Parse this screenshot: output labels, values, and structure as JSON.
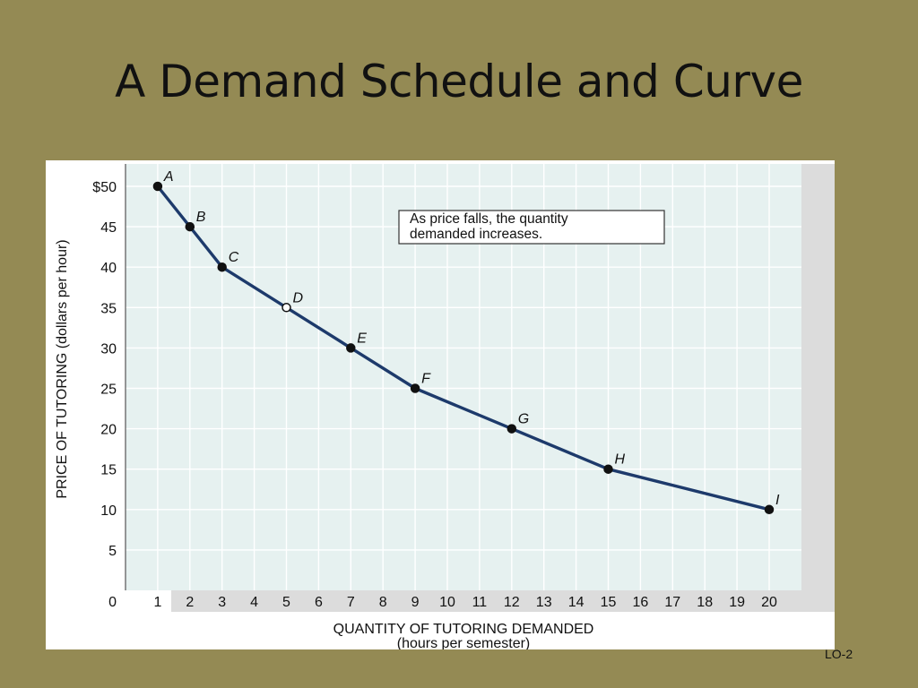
{
  "slide": {
    "title": "A Demand Schedule and Curve",
    "footer": "LO-2"
  },
  "chart_data": {
    "type": "line",
    "title": "",
    "xlabel": "QUANTITY OF TUTORING DEMANDED",
    "xlabel_sub": "(hours per semester)",
    "ylabel": "PRICE OF TUTORING (dollars per hour)",
    "xlim": [
      0,
      21
    ],
    "ylim": [
      0,
      52
    ],
    "x_ticks": [
      1,
      2,
      3,
      4,
      5,
      6,
      7,
      8,
      9,
      10,
      11,
      12,
      13,
      14,
      15,
      16,
      17,
      18,
      19,
      20
    ],
    "y_ticks": [
      0,
      5,
      10,
      15,
      20,
      25,
      30,
      35,
      40,
      45,
      50
    ],
    "y_tick_labels": [
      "0",
      "5",
      "10",
      "15",
      "20",
      "25",
      "30",
      "35",
      "40",
      "45",
      "$50"
    ],
    "grid": true,
    "annotation": {
      "line1": "As price falls, the quantity",
      "line2": "demanded increases."
    },
    "series": [
      {
        "points": [
          {
            "label": "A",
            "x": 1,
            "y": 50,
            "marker": "filled"
          },
          {
            "label": "B",
            "x": 2,
            "y": 45,
            "marker": "filled"
          },
          {
            "label": "C",
            "x": 3,
            "y": 40,
            "marker": "filled"
          },
          {
            "label": "D",
            "x": 5,
            "y": 35,
            "marker": "open"
          },
          {
            "label": "E",
            "x": 7,
            "y": 30,
            "marker": "filled"
          },
          {
            "label": "F",
            "x": 9,
            "y": 25,
            "marker": "filled"
          },
          {
            "label": "G",
            "x": 12,
            "y": 20,
            "marker": "filled"
          },
          {
            "label": "H",
            "x": 15,
            "y": 15,
            "marker": "filled"
          },
          {
            "label": "I",
            "x": 20,
            "y": 10,
            "marker": "filled"
          }
        ]
      }
    ],
    "colors": {
      "plot_background": "#e6f1f0",
      "grid": "#ffffff",
      "curve": "#1d3a6b",
      "marker": "#111111",
      "side_strip": "#dcdcdc"
    }
  }
}
